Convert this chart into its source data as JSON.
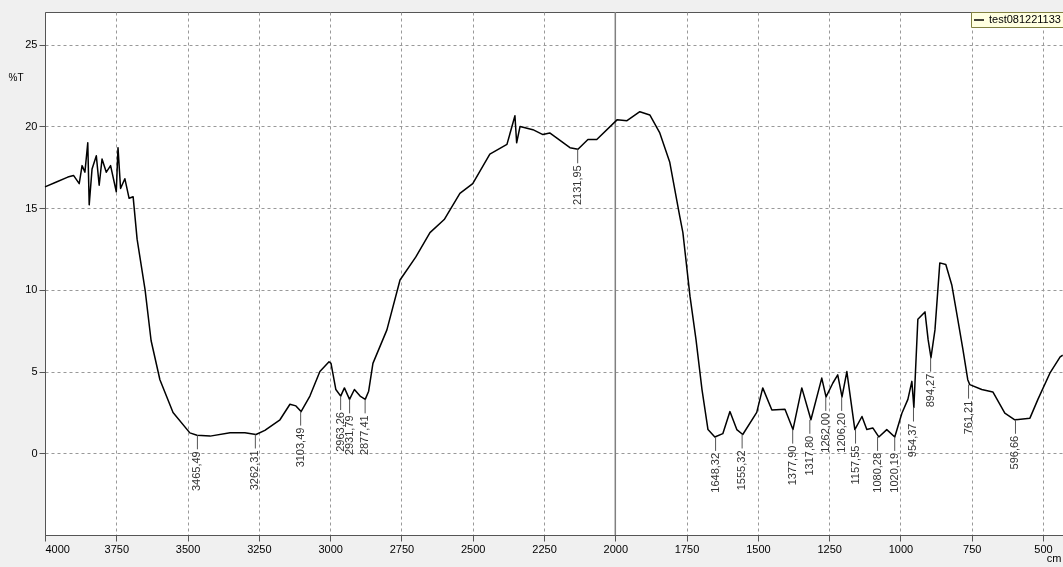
{
  "chart_data": {
    "type": "line",
    "xlabel": "cm",
    "ylabel": "%T",
    "x": [
      4000,
      3960,
      3920,
      3900,
      3880,
      3870,
      3860,
      3850,
      3845,
      3835,
      3820,
      3810,
      3800,
      3785,
      3770,
      3750,
      3744,
      3735,
      3720,
      3705,
      3691,
      3677,
      3649,
      3628,
      3597,
      3551,
      3492,
      3467,
      3421,
      3351,
      3299,
      3260,
      3229,
      3176,
      3141,
      3120,
      3102,
      3071,
      3036,
      3004,
      2997,
      2980,
      2963,
      2950,
      2932,
      2915,
      2895,
      2877,
      2865,
      2850,
      2801,
      2755,
      2700,
      2650,
      2600,
      2545,
      2500,
      2440,
      2380,
      2352,
      2346,
      2334,
      2289,
      2254,
      2230,
      2159,
      2131,
      2096,
      2065,
      1994,
      1959,
      1914,
      1879,
      1844,
      1809,
      1774,
      1763,
      1738,
      1717,
      1696,
      1675,
      1651,
      1623,
      1598,
      1574,
      1553,
      1504,
      1483,
      1451,
      1405,
      1377,
      1346,
      1314,
      1276,
      1261,
      1237,
      1220,
      1205,
      1188,
      1160,
      1135,
      1118,
      1097,
      1076,
      1048,
      1020,
      995,
      974,
      960,
      953,
      939,
      914,
      903,
      893,
      879,
      862,
      841,
      820,
      799,
      781,
      764,
      757,
      715,
      676,
      634,
      599,
      546,
      518,
      476,
      440,
      431
    ],
    "series": [
      {
        "name": "test081221133",
        "color": "#000000",
        "values": [
          16.3,
          16.6,
          16.9,
          17.0,
          16.5,
          17.6,
          17.2,
          19.0,
          15.2,
          17.4,
          18.2,
          16.4,
          18.0,
          17.2,
          17.6,
          16.0,
          18.7,
          16.2,
          16.8,
          15.6,
          15.7,
          13.1,
          10.0,
          6.9,
          4.5,
          2.5,
          1.25,
          1.1,
          1.05,
          1.25,
          1.25,
          1.15,
          1.4,
          2.05,
          3.0,
          2.9,
          2.55,
          3.5,
          5.0,
          5.6,
          5.5,
          3.9,
          3.5,
          4.0,
          3.3,
          3.9,
          3.5,
          3.3,
          3.8,
          5.5,
          7.55,
          10.6,
          12.0,
          13.5,
          14.3,
          15.9,
          16.5,
          18.3,
          18.9,
          20.65,
          19.0,
          20.0,
          19.8,
          19.5,
          19.6,
          18.7,
          18.6,
          19.2,
          19.2,
          20.4,
          20.35,
          20.9,
          20.7,
          19.6,
          17.8,
          14.5,
          13.5,
          9.6,
          6.95,
          3.9,
          1.45,
          1.0,
          1.2,
          2.55,
          1.45,
          1.15,
          2.5,
          4.0,
          2.65,
          2.7,
          1.45,
          4.0,
          2.05,
          4.6,
          3.45,
          4.3,
          4.8,
          3.45,
          5.0,
          1.45,
          2.25,
          1.45,
          1.55,
          1.0,
          1.45,
          1.0,
          2.45,
          3.3,
          4.4,
          2.8,
          8.2,
          8.65,
          6.95,
          5.85,
          7.55,
          11.65,
          11.55,
          10.3,
          8.2,
          6.35,
          4.5,
          4.2,
          3.9,
          3.75,
          2.45,
          2.05,
          2.15,
          3.3,
          4.9,
          5.9,
          6.0
        ]
      }
    ],
    "xlim": [
      4000,
      430
    ],
    "ylim": [
      -5,
      27
    ],
    "xticks": [
      4000,
      3750,
      3500,
      3250,
      3000,
      2750,
      2500,
      2250,
      2000,
      1750,
      1500,
      1250,
      1000,
      750,
      500
    ],
    "yticks": [
      0,
      5,
      10,
      15,
      20,
      25
    ],
    "grid": true,
    "legend": "top right",
    "marker": "none",
    "line_style": "solid",
    "ref_lines": [
      {
        "axis": "x",
        "value": 2000,
        "color": "#808080"
      }
    ],
    "annotations": [
      {
        "text": "3465,49",
        "x": 3465.49,
        "y": 1.1
      },
      {
        "text": "3262,31",
        "x": 3262.31,
        "y": 1.15
      },
      {
        "text": "3103,49",
        "x": 3103.49,
        "y": 2.55
      },
      {
        "text": "2963,26",
        "x": 2963.26,
        "y": 3.5
      },
      {
        "text": "2931,79",
        "x": 2931.79,
        "y": 3.3
      },
      {
        "text": "2877,41",
        "x": 2877.41,
        "y": 3.3
      },
      {
        "text": "2131,95",
        "x": 2131.95,
        "y": 18.6
      },
      {
        "text": "1648,32",
        "x": 1648.32,
        "y": 1.0
      },
      {
        "text": "1555,32",
        "x": 1555.32,
        "y": 1.15
      },
      {
        "text": "1377,90",
        "x": 1377.9,
        "y": 1.45
      },
      {
        "text": "1317,80",
        "x": 1317.8,
        "y": 2.05
      },
      {
        "text": "1262,00",
        "x": 1262.0,
        "y": 3.45
      },
      {
        "text": "1206,20",
        "x": 1206.2,
        "y": 3.45
      },
      {
        "text": "1157,55",
        "x": 1157.55,
        "y": 1.45
      },
      {
        "text": "1080,28",
        "x": 1080.28,
        "y": 1.0
      },
      {
        "text": "1020,19",
        "x": 1020.19,
        "y": 1.0
      },
      {
        "text": "954,37",
        "x": 954.37,
        "y": 2.8
      },
      {
        "text": "894,27",
        "x": 894.27,
        "y": 5.85
      },
      {
        "text": "761,21",
        "x": 761.21,
        "y": 4.2
      },
      {
        "text": "596,66",
        "x": 596.66,
        "y": 2.05
      }
    ]
  }
}
